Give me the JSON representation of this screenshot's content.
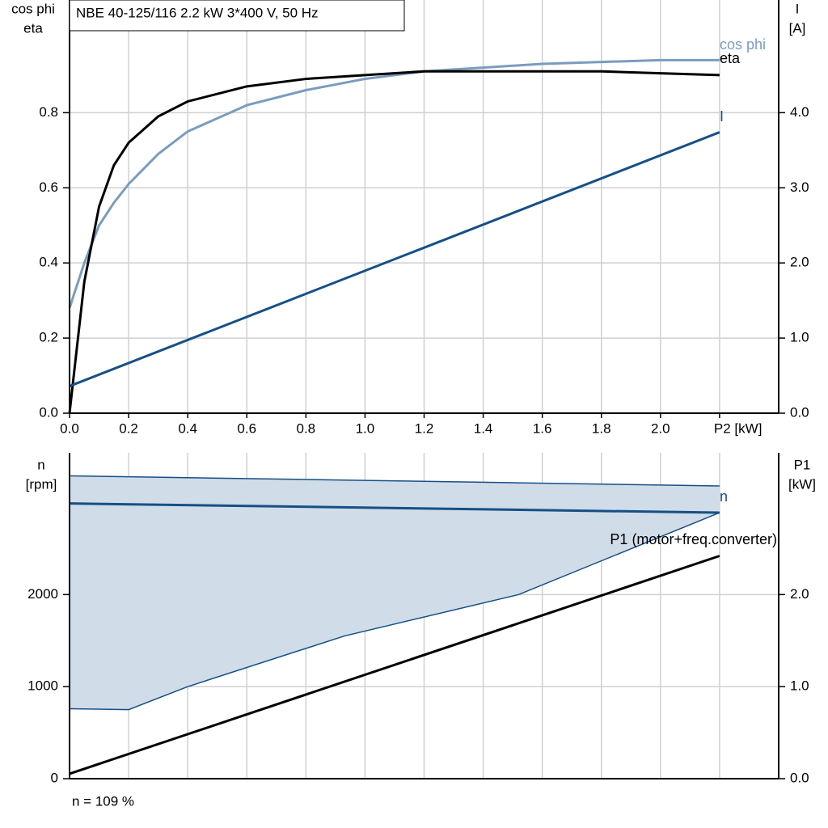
{
  "chart_data": [
    {
      "type": "line",
      "title": "NBE 40-125/116   2.2 kW   3*400 V, 50 Hz",
      "ylabel": [
        "cos phi",
        "eta"
      ],
      "y2label": [
        "I",
        "[A]"
      ],
      "xlim": [
        0,
        2.4
      ],
      "xticks": [
        {
          "value": 0,
          "label": "0.0"
        },
        0.2,
        0.4,
        0.6,
        0.8,
        {
          "value": 1,
          "label": "1.0"
        },
        1.2,
        1.4,
        1.6,
        1.8,
        {
          "value": 2,
          "label": "2.0"
        },
        {
          "value": 2.2,
          "label": "P2 [kW]"
        }
      ],
      "ylim": [
        0,
        1.1
      ],
      "yticks": [
        {
          "value": 0,
          "label": "0.0"
        },
        0.2,
        0.4,
        0.6,
        0.8
      ],
      "y2lim": [
        0,
        5.5
      ],
      "y2ticks": [
        {
          "value": 0,
          "label": "0.0"
        },
        {
          "value": 1,
          "label": "1.0"
        },
        {
          "value": 2,
          "label": "2.0"
        },
        {
          "value": 3,
          "label": "3.0"
        },
        {
          "value": 4,
          "label": "4.0"
        }
      ],
      "grid": true,
      "series": [
        {
          "name": "cos phi",
          "color": "#7a9cbf",
          "x": [
            0,
            0.05,
            0.1,
            0.15,
            0.2,
            0.3,
            0.4,
            0.6,
            0.8,
            1.0,
            1.2,
            1.4,
            1.6,
            1.8,
            2.0,
            2.2
          ],
          "values": [
            0.28,
            0.4,
            0.5,
            0.56,
            0.61,
            0.69,
            0.75,
            0.82,
            0.86,
            0.89,
            0.91,
            0.92,
            0.93,
            0.935,
            0.94,
            0.94
          ]
        },
        {
          "name": "eta",
          "color": "#000000",
          "x": [
            0,
            0.05,
            0.1,
            0.15,
            0.2,
            0.3,
            0.4,
            0.6,
            0.8,
            1.0,
            1.2,
            1.4,
            1.6,
            1.8,
            2.0,
            2.2
          ],
          "values": [
            0,
            0.35,
            0.55,
            0.66,
            0.72,
            0.79,
            0.83,
            0.87,
            0.89,
            0.9,
            0.91,
            0.91,
            0.91,
            0.91,
            0.905,
            0.9
          ]
        },
        {
          "name": "I",
          "color": "#164f86",
          "axis": "y2",
          "x": [
            0,
            2.2
          ],
          "values": [
            0.36,
            3.74
          ]
        }
      ]
    },
    {
      "type": "line",
      "ylabel": [
        "n",
        "[rpm]"
      ],
      "y2label": [
        "P1",
        "[kW]"
      ],
      "note": "n = 109 %",
      "xlim": [
        0,
        2.4
      ],
      "ylim": [
        0,
        3540
      ],
      "yticks": [
        0,
        1000,
        2000
      ],
      "y2lim": [
        0,
        3.54
      ],
      "y2ticks": [
        {
          "value": 0,
          "label": "0.0"
        },
        {
          "value": 1,
          "label": "1.0"
        },
        {
          "value": 2,
          "label": "2.0"
        }
      ],
      "grid": true,
      "area": {
        "color": "#d0dce8",
        "edge": "#164f86",
        "x": [
          0,
          0.2,
          0.4,
          0.93,
          1.52,
          2.2
        ],
        "upper": [
          3290,
          3280,
          3270,
          3244,
          3214,
          3180
        ],
        "lower": [
          760,
          750,
          1000,
          1550,
          2000,
          2890
        ]
      },
      "series": [
        {
          "name": "n",
          "color": "#164f86",
          "x": [
            0,
            2.2
          ],
          "values": [
            2990,
            2890
          ]
        },
        {
          "name": "P1 (motor+freq.converter)",
          "color": "#000000",
          "axis": "y2",
          "x": [
            0,
            2.2
          ],
          "values": [
            0.053,
            2.42
          ]
        }
      ]
    }
  ]
}
